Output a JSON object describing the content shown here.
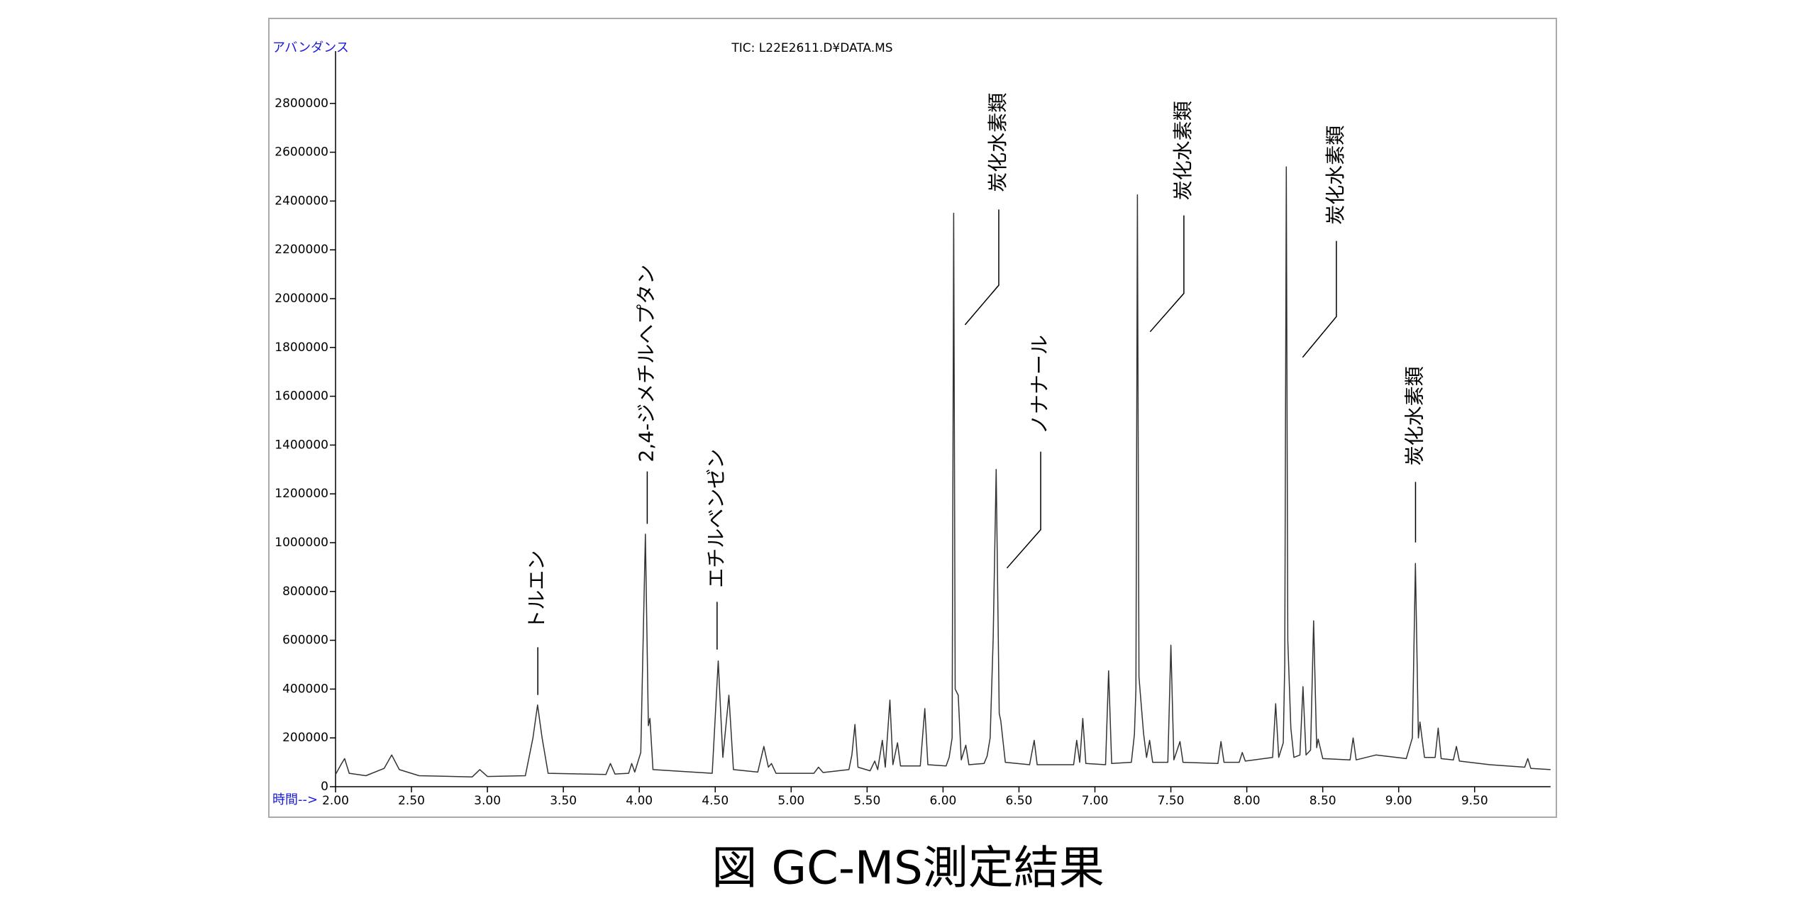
{
  "chart_data": {
    "type": "line",
    "title": "TIC: L22E2611.D¥DATA.MS",
    "caption": "図  GC-MS測定結果",
    "y_label": "アバンダンス",
    "x_label": "時間-->",
    "color": "#333333",
    "xlim": [
      2.0,
      10.0
    ],
    "ylim": [
      0,
      3000000
    ],
    "xticks": [
      {
        "value": 2.0,
        "label": "2.00"
      },
      {
        "value": 2.5,
        "label": "2.50"
      },
      {
        "value": 3.0,
        "label": "3.00"
      },
      {
        "value": 3.5,
        "label": "3.50"
      },
      {
        "value": 4.0,
        "label": "4.00"
      },
      {
        "value": 4.5,
        "label": "4.50"
      },
      {
        "value": 5.0,
        "label": "5.00"
      },
      {
        "value": 5.5,
        "label": "5.50"
      },
      {
        "value": 6.0,
        "label": "6.00"
      },
      {
        "value": 6.5,
        "label": "6.50"
      },
      {
        "value": 7.0,
        "label": "7.00"
      },
      {
        "value": 7.5,
        "label": "7.50"
      },
      {
        "value": 8.0,
        "label": "8.00"
      },
      {
        "value": 8.5,
        "label": "8.50"
      },
      {
        "value": 9.0,
        "label": "9.00"
      },
      {
        "value": 9.5,
        "label": "9.50"
      }
    ],
    "yticks": [
      0,
      200000,
      400000,
      600000,
      800000,
      1000000,
      1200000,
      1400000,
      1600000,
      1800000,
      2000000,
      2200000,
      2400000,
      2600000,
      2800000
    ],
    "annotations": [
      "トルエン",
      "2,4-ジメチルヘプタン",
      "エチルベンゼン",
      "炭化水素類",
      "ノナナール",
      "炭化水素類",
      "炭化水素類",
      "炭化水素類"
    ],
    "x": [
      2.0,
      2.04,
      2.06,
      2.09,
      2.2,
      2.32,
      2.37,
      2.42,
      2.55,
      2.9,
      2.95,
      3.0,
      3.25,
      3.3,
      3.33,
      3.36,
      3.4,
      3.78,
      3.81,
      3.84,
      3.93,
      3.95,
      3.97,
      4.01,
      4.04,
      4.06,
      4.07,
      4.09,
      4.48,
      4.52,
      4.55,
      4.59,
      4.62,
      4.78,
      4.82,
      4.85,
      4.87,
      4.9,
      5.15,
      5.18,
      5.21,
      5.38,
      5.4,
      5.42,
      5.44,
      5.52,
      5.55,
      5.57,
      5.6,
      5.62,
      5.65,
      5.67,
      5.7,
      5.72,
      5.85,
      5.88,
      5.9,
      6.02,
      6.04,
      6.06,
      6.07,
      6.08,
      6.1,
      6.12,
      6.15,
      6.17,
      6.27,
      6.29,
      6.31,
      6.33,
      6.35,
      6.37,
      6.38,
      6.41,
      6.57,
      6.6,
      6.62,
      6.86,
      6.88,
      6.9,
      6.92,
      6.94,
      7.07,
      7.09,
      7.11,
      7.24,
      7.26,
      7.27,
      7.28,
      7.29,
      7.32,
      7.34,
      7.36,
      7.38,
      7.48,
      7.5,
      7.52,
      7.56,
      7.58,
      7.81,
      7.83,
      7.85,
      7.95,
      7.97,
      7.99,
      8.17,
      8.19,
      8.21,
      8.24,
      8.25,
      8.26,
      8.27,
      8.29,
      8.31,
      8.35,
      8.37,
      8.39,
      8.42,
      8.44,
      8.46,
      8.47,
      8.5,
      8.68,
      8.7,
      8.72,
      8.85,
      9.05,
      9.09,
      9.11,
      9.13,
      9.14,
      9.17,
      9.24,
      9.26,
      9.28,
      9.36,
      9.38,
      9.4,
      9.6,
      9.83,
      9.85,
      9.87,
      10.0
    ],
    "values": [
      50000,
      95000,
      115000,
      55000,
      45000,
      75000,
      130000,
      70000,
      45000,
      40000,
      70000,
      42000,
      45000,
      200000,
      335000,
      200000,
      55000,
      50000,
      95000,
      52000,
      55000,
      95000,
      60000,
      140000,
      1035000,
      250000,
      280000,
      70000,
      55000,
      515000,
      120000,
      375000,
      70000,
      60000,
      165000,
      80000,
      95000,
      55000,
      55000,
      80000,
      58000,
      70000,
      130000,
      255000,
      80000,
      65000,
      105000,
      70000,
      190000,
      80000,
      355000,
      90000,
      180000,
      85000,
      85000,
      320000,
      90000,
      85000,
      120000,
      200000,
      2350000,
      400000,
      375000,
      110000,
      170000,
      90000,
      95000,
      125000,
      200000,
      610000,
      1300000,
      300000,
      270000,
      100000,
      90000,
      190000,
      90000,
      90000,
      190000,
      100000,
      280000,
      95000,
      90000,
      475000,
      95000,
      100000,
      215000,
      400000,
      2425000,
      450000,
      220000,
      120000,
      190000,
      100000,
      100000,
      580000,
      110000,
      185000,
      100000,
      95000,
      185000,
      100000,
      100000,
      140000,
      105000,
      120000,
      340000,
      120000,
      180000,
      500000,
      2540000,
      600000,
      240000,
      120000,
      130000,
      410000,
      130000,
      150000,
      680000,
      160000,
      195000,
      115000,
      110000,
      200000,
      110000,
      130000,
      115000,
      200000,
      915000,
      200000,
      265000,
      120000,
      120000,
      240000,
      115000,
      110000,
      165000,
      105000,
      90000,
      80000,
      115000,
      75000,
      70000
    ]
  }
}
